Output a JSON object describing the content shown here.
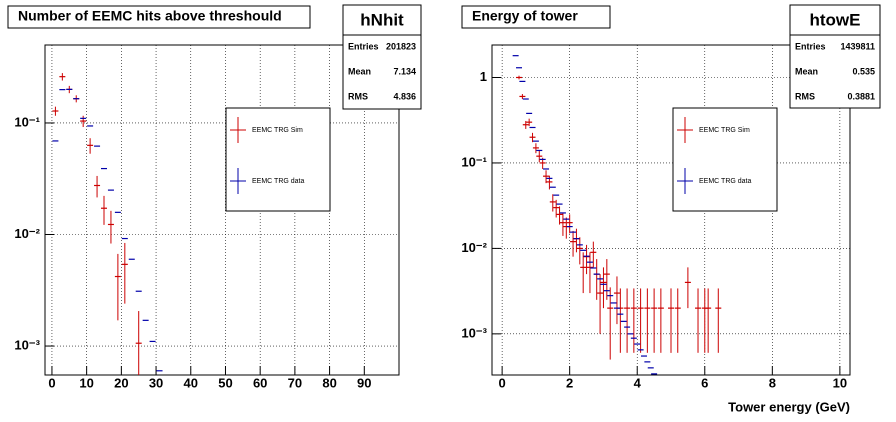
{
  "chart_data": [
    {
      "type": "scatter",
      "title": "Number of EEMC hits above threshould",
      "stats": {
        "name": "hNhit",
        "rows": [
          [
            "Entries",
            201823
          ],
          [
            "Mean",
            7.134
          ],
          [
            "RMS",
            4.836
          ]
        ]
      },
      "log_y": true,
      "grid": true,
      "xlim": [
        -2,
        100
      ],
      "xticks": [
        0,
        10,
        20,
        30,
        40,
        50,
        60,
        70,
        80,
        90
      ],
      "ylim": [
        0.00055,
        0.5
      ],
      "yticks": [
        {
          "value": 0.001,
          "label": "10⁻³"
        },
        {
          "value": 0.01,
          "label": "10⁻²"
        },
        {
          "value": 0.1,
          "label": "10⁻¹"
        }
      ],
      "series": [
        {
          "name": "EEMC TRG Sim",
          "color": "#cc0000",
          "x": [
            1,
            3,
            5,
            7,
            9,
            11,
            13,
            15,
            17,
            19,
            21,
            25
          ],
          "values": [
            0.128,
            0.26,
            0.2,
            0.165,
            0.104,
            0.063,
            0.0275,
            0.0172,
            0.0123,
            0.0042,
            0.0054,
            0.00106
          ],
          "errors": [
            0.012,
            0.02,
            0.015,
            0.012,
            0.012,
            0.01,
            0.006,
            0.005,
            0.004,
            0.0025,
            0.003,
            0.001
          ]
        },
        {
          "name": "EEMC TRG data",
          "color": "#0000aa",
          "x": [
            1,
            3,
            5,
            7,
            9,
            11,
            13,
            15,
            17,
            19,
            21,
            23,
            25,
            27,
            29,
            31
          ],
          "values": [
            0.069,
            0.199,
            0.2,
            0.165,
            0.11,
            0.094,
            0.062,
            0.039,
            0.025,
            0.0158,
            0.0092,
            0.006,
            0.0031,
            0.0017,
            0.0011,
            0.0006
          ]
        }
      ]
    },
    {
      "type": "scatter",
      "title": "Energy of tower",
      "x_label": "Tower energy (GeV)",
      "stats": {
        "name": "htowE",
        "rows": [
          [
            "Entries",
            1439811
          ],
          [
            "Mean",
            0.535
          ],
          [
            "RMS",
            0.3881
          ]
        ]
      },
      "log_y": true,
      "grid": true,
      "xlim": [
        -0.3,
        10.3
      ],
      "xticks": [
        0,
        2,
        4,
        6,
        8,
        10
      ],
      "ylim": [
        0.00033,
        2.4
      ],
      "yticks": [
        {
          "value": 0.001,
          "label": "10⁻³"
        },
        {
          "value": 0.01,
          "label": "10⁻²"
        },
        {
          "value": 0.1,
          "label": "10⁻¹"
        },
        1
      ],
      "series": [
        {
          "name": "EEMC TRG Sim",
          "color": "#cc0000",
          "x": [
            0.5,
            0.6,
            0.7,
            0.8,
            0.9,
            1.0,
            1.1,
            1.2,
            1.3,
            1.4,
            1.5,
            1.6,
            1.7,
            1.8,
            1.9,
            2.0,
            2.1,
            2.2,
            2.3,
            2.4,
            2.5,
            2.6,
            2.7,
            2.8,
            2.9,
            3.0,
            3.1,
            3.2,
            3.4,
            3.5,
            3.7,
            3.9,
            4.1,
            4.3,
            4.5,
            4.7,
            5.0,
            5.2,
            5.5,
            5.8,
            6.0,
            6.1,
            6.4
          ],
          "values": [
            1.0,
            0.6,
            0.28,
            0.3,
            0.2,
            0.15,
            0.12,
            0.1,
            0.07,
            0.06,
            0.035,
            0.03,
            0.025,
            0.02,
            0.018,
            0.02,
            0.012,
            0.013,
            0.01,
            0.006,
            0.008,
            0.006,
            0.009,
            0.005,
            0.003,
            0.004,
            0.005,
            0.002,
            0.003,
            0.002,
            0.002,
            0.002,
            0.002,
            0.002,
            0.002,
            0.002,
            0.002,
            0.002,
            0.004,
            0.002,
            0.002,
            0.002,
            0.002
          ],
          "errors": [
            0.05,
            0.04,
            0.03,
            0.03,
            0.025,
            0.02,
            0.018,
            0.015,
            0.012,
            0.011,
            0.008,
            0.007,
            0.006,
            0.006,
            0.005,
            0.005,
            0.004,
            0.004,
            0.0035,
            0.003,
            0.003,
            0.003,
            0.003,
            0.0025,
            0.002,
            0.002,
            0.0025,
            0.0015,
            0.0017,
            0.0014,
            0.0014,
            0.0014,
            0.0014,
            0.0014,
            0.0014,
            0.0014,
            0.0014,
            0.0014,
            0.002,
            0.0014,
            0.0014,
            0.0014,
            0.0014
          ]
        },
        {
          "name": "EEMC TRG data",
          "color": "#0000aa",
          "x": [
            0.4,
            0.5,
            0.6,
            0.7,
            0.8,
            0.9,
            1.0,
            1.1,
            1.2,
            1.3,
            1.4,
            1.5,
            1.6,
            1.7,
            1.8,
            1.9,
            2.0,
            2.1,
            2.2,
            2.3,
            2.4,
            2.5,
            2.6,
            2.7,
            2.8,
            2.9,
            3.0,
            3.1,
            3.2,
            3.3,
            3.4,
            3.5,
            3.6,
            3.7,
            3.8,
            3.9,
            4.0,
            4.1,
            4.2,
            4.3,
            4.4,
            4.5
          ],
          "values": [
            1.8,
            1.3,
            0.9,
            0.56,
            0.38,
            0.26,
            0.18,
            0.14,
            0.11,
            0.085,
            0.066,
            0.052,
            0.042,
            0.033,
            0.026,
            0.022,
            0.018,
            0.0155,
            0.013,
            0.011,
            0.0095,
            0.0081,
            0.0069,
            0.0059,
            0.005,
            0.0044,
            0.0038,
            0.0032,
            0.0028,
            0.0023,
            0.002,
            0.0017,
            0.0014,
            0.0012,
            0.001,
            0.00089,
            0.00076,
            0.00065,
            0.00055,
            0.00047,
            0.0004,
            0.00034
          ]
        }
      ]
    }
  ]
}
